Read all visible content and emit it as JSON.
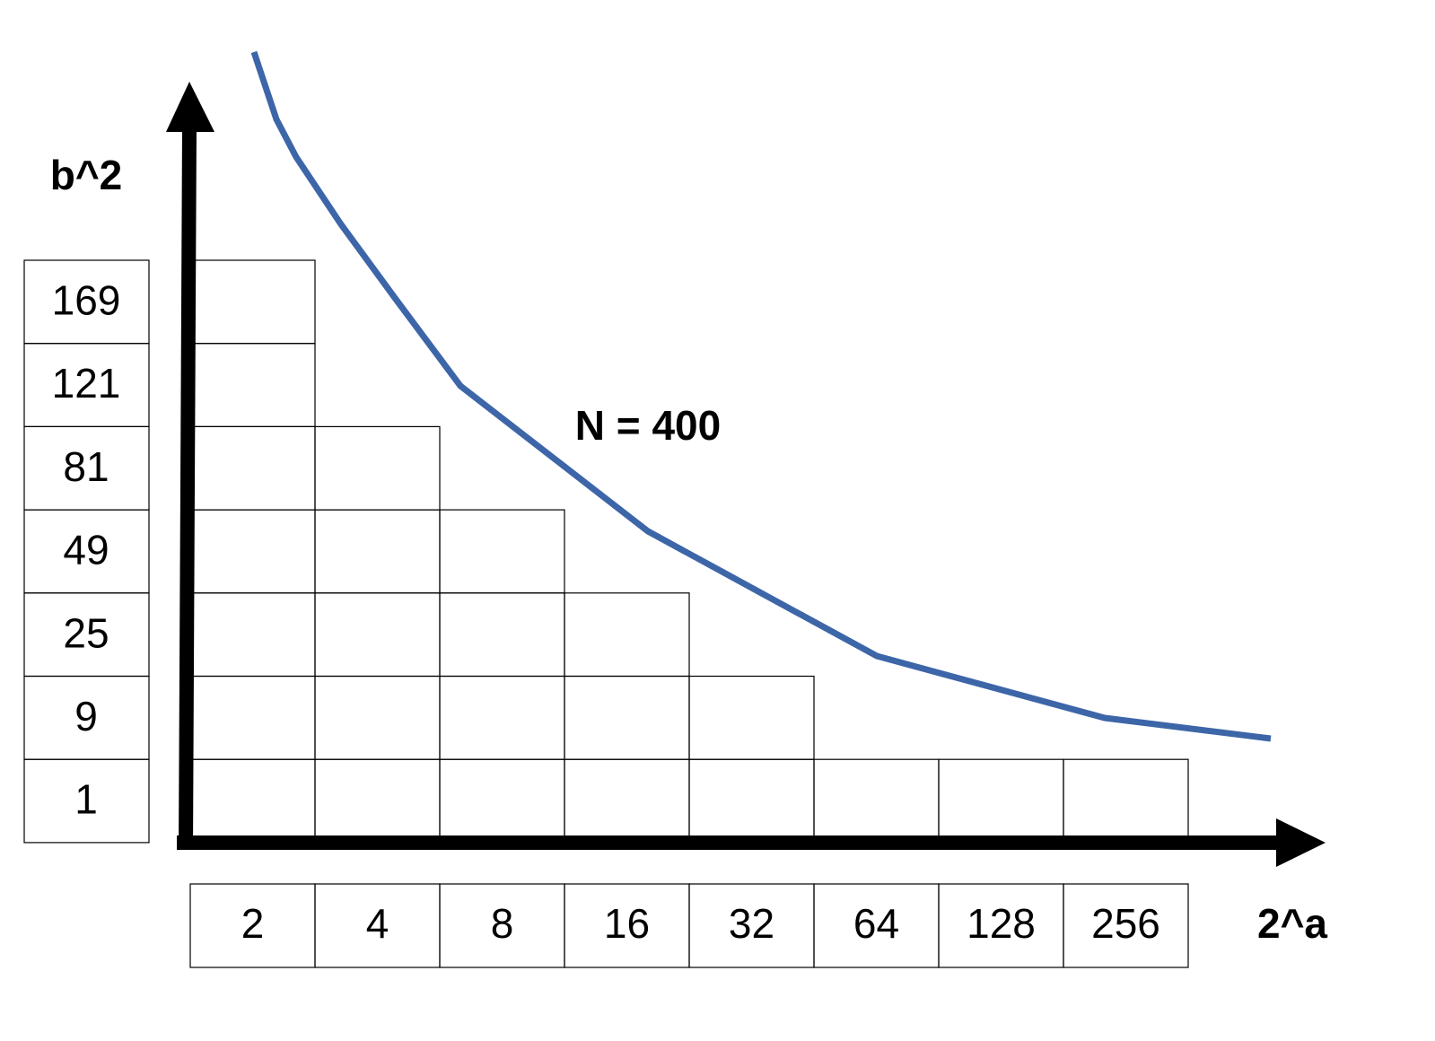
{
  "y_axis": {
    "label": "b^2",
    "values": [
      169,
      121,
      81,
      49,
      25,
      9,
      1
    ]
  },
  "x_axis": {
    "label": "2^a",
    "values": [
      2,
      4,
      8,
      16,
      32,
      64,
      128,
      256
    ]
  },
  "annotation": "N = 400"
}
